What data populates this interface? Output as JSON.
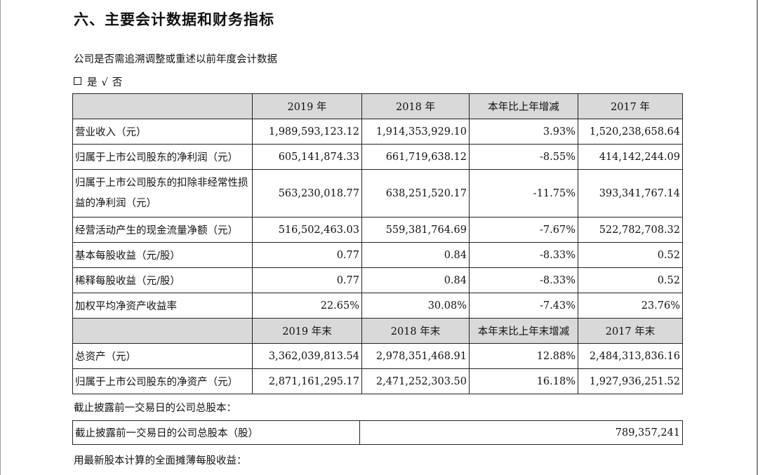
{
  "heading": "六、主要会计数据和财务指标",
  "question": "公司是否需追溯调整或重述以前年度会计数据",
  "answer": {
    "yes_label": "是",
    "check_mark": "√",
    "no_label": "否"
  },
  "table": {
    "header1": [
      "",
      "2019 年",
      "2018 年",
      "本年比上年增减",
      "2017 年"
    ],
    "rows1": [
      [
        "营业收入（元）",
        "1,989,593,123.12",
        "1,914,353,929.10",
        "3.93%",
        "1,520,238,658.64"
      ],
      [
        "归属于上市公司股东的净利润（元）",
        "605,141,874.33",
        "661,719,638.12",
        "-8.55%",
        "414,142,244.09"
      ],
      [
        "归属于上市公司股东的扣除非经常性损益的净利润（元）",
        "563,230,018.77",
        "638,251,520.17",
        "-11.75%",
        "393,341,767.14"
      ],
      [
        "经营活动产生的现金流量净额（元）",
        "516,502,463.03",
        "559,381,764.69",
        "-7.67%",
        "522,782,708.32"
      ],
      [
        "基本每股收益（元/股）",
        "0.77",
        "0.84",
        "-8.33%",
        "0.52"
      ],
      [
        "稀释每股收益（元/股）",
        "0.77",
        "0.84",
        "-8.33%",
        "0.52"
      ],
      [
        "加权平均净资产收益率",
        "22.65%",
        "30.08%",
        "-7.43%",
        "23.76%"
      ]
    ],
    "header2": [
      "",
      "2019 年末",
      "2018 年末",
      "本年末比上年末增减",
      "2017 年末"
    ],
    "rows2": [
      [
        "总资产（元）",
        "3,362,039,813.54",
        "2,978,351,468.91",
        "12.88%",
        "2,484,313,836.16"
      ],
      [
        "归属于上市公司股东的净资产（元）",
        "2,871,161,295.17",
        "2,471,252,303.50",
        "16.18%",
        "1,927,936,251.52"
      ]
    ]
  },
  "capital_intro": "截止披露前一交易日的公司总股本：",
  "capital_table": {
    "label": "截止披露前一交易日的公司总股本（股）",
    "value": "789,357,241"
  },
  "eps_note": "用最新股本计算的全面摊薄每股收益："
}
